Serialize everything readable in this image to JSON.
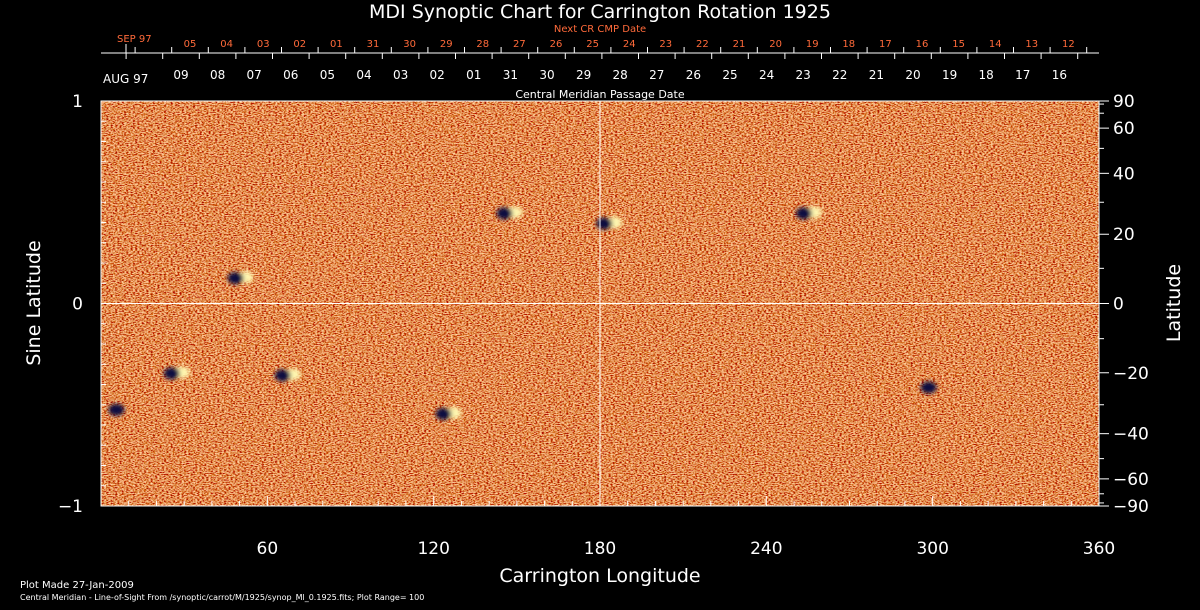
{
  "chart_data": {
    "type": "heatmap",
    "title": "MDI Synoptic Chart for Carrington Rotation 1925",
    "xlabel": "Carrington Longitude",
    "ylabel_left": "Sine Latitude",
    "ylabel_right": "Latitude",
    "xlim": [
      0,
      360
    ],
    "ylim": [
      -1,
      1
    ],
    "x_ticks": [
      60,
      120,
      180,
      240,
      300,
      360
    ],
    "y_left_ticks": [
      {
        "v": 1,
        "label": "1"
      },
      {
        "v": 0,
        "label": "0"
      },
      {
        "v": -1,
        "label": "−1"
      }
    ],
    "y_right_ticks": [
      90,
      60,
      40,
      20,
      0,
      -20,
      -40,
      -60,
      -90
    ],
    "top_axis_next_title": "Next CR CMP Date",
    "top_axis_next_month": "SEP 97",
    "top_axis_next_labels": [
      "05",
      "04",
      "03",
      "02",
      "01",
      "31",
      "30",
      "29",
      "28",
      "27",
      "26",
      "25",
      "24",
      "23",
      "22",
      "21",
      "20",
      "19",
      "18",
      "17",
      "16",
      "15",
      "14",
      "13",
      "12"
    ],
    "top_axis_cmp_month": "AUG 97",
    "top_axis_cmp_labels": [
      "09",
      "08",
      "07",
      "06",
      "05",
      "04",
      "03",
      "02",
      "01",
      "31",
      "30",
      "29",
      "28",
      "27",
      "26",
      "25",
      "24",
      "23",
      "22",
      "21",
      "20",
      "19",
      "18",
      "17",
      "16"
    ],
    "top_axis_cmp_title": "Central Meridian Passage Date",
    "gridlines": {
      "longitude": 180,
      "sine_latitude": 0
    },
    "colors": {
      "background": "#000000",
      "field_base": "#f2541b",
      "positive": "#fff7b0",
      "negative": "#0a0a40",
      "date_axis": "#ff6a3a"
    },
    "active_regions": [
      {
        "lon": 147,
        "sinlat": 0.45,
        "polarity": "mixed"
      },
      {
        "lon": 183,
        "sinlat": 0.4,
        "polarity": "mixed"
      },
      {
        "lon": 255,
        "sinlat": 0.45,
        "polarity": "mixed"
      },
      {
        "lon": 50,
        "sinlat": 0.13,
        "polarity": "mixed"
      },
      {
        "lon": 27,
        "sinlat": -0.34,
        "polarity": "mixed"
      },
      {
        "lon": 7,
        "sinlat": -0.52,
        "polarity": "negative"
      },
      {
        "lon": 67,
        "sinlat": -0.35,
        "polarity": "mixed"
      },
      {
        "lon": 125,
        "sinlat": -0.54,
        "polarity": "mixed"
      },
      {
        "lon": 300,
        "sinlat": -0.41,
        "polarity": "negative"
      }
    ]
  },
  "footer": {
    "plot_made": "Plot Made 27-Jan-2009",
    "caption": "Central Meridian - Line-of-Sight From /synoptic/carrot/M/1925/synop_Ml_0.1925.fits; Plot Range=  100"
  }
}
